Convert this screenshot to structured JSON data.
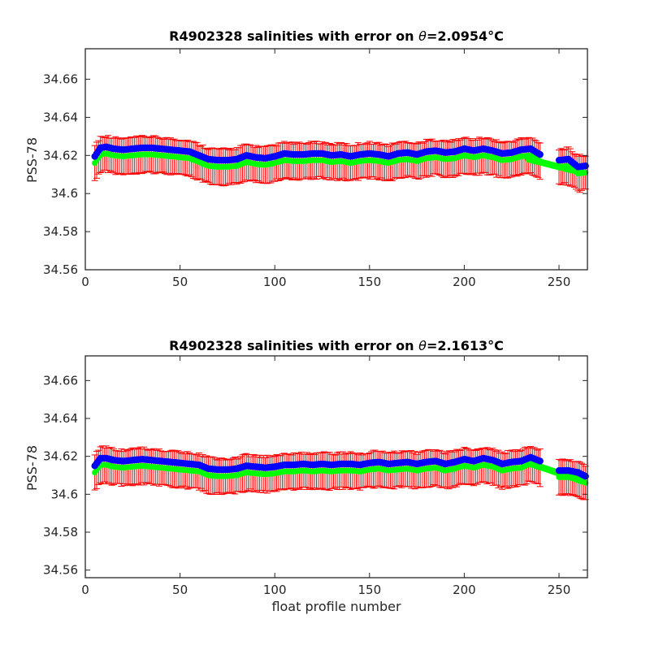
{
  "colors": {
    "measured": "#0000ff",
    "errorbar": "#ff0000",
    "mapped": "#00ff00",
    "axes": "#262626"
  },
  "chart_data": [
    {
      "type": "scatter",
      "title_main": "R4902328 salinities with error on ",
      "title_theta": "θ",
      "title_value": "=2.0954",
      "title_unit": "°C",
      "xlabel": "",
      "ylabel": "PSS-78",
      "xlim": [
        0,
        265
      ],
      "ylim": [
        34.56,
        34.676
      ],
      "xticks": [
        0,
        50,
        100,
        150,
        200,
        250
      ],
      "yticks": [
        34.56,
        34.58,
        34.6,
        34.62,
        34.64,
        34.66
      ],
      "ytick_labels": [
        "34.56",
        "34.58",
        "34.6",
        "34.62",
        "34.64",
        "34.66"
      ],
      "grid": false,
      "gaps": [
        [
          240,
          250
        ]
      ],
      "error_halfwidth": 0.0085,
      "mapped_offset": -0.0035,
      "mapped_tail": [
        [
          234,
          34.618
        ],
        [
          262,
          34.611
        ]
      ],
      "measured_x": [
        5,
        8,
        11,
        15,
        20,
        25,
        30,
        35,
        40,
        45,
        50,
        55,
        60,
        65,
        70,
        75,
        80,
        85,
        90,
        95,
        100,
        105,
        110,
        115,
        120,
        125,
        130,
        135,
        140,
        145,
        150,
        155,
        160,
        165,
        170,
        175,
        180,
        185,
        190,
        195,
        200,
        205,
        210,
        215,
        220,
        225,
        230,
        235,
        240,
        250,
        255,
        260,
        264
      ],
      "measured_y": [
        34.6195,
        34.624,
        34.6245,
        34.6235,
        34.623,
        34.6235,
        34.624,
        34.624,
        34.6235,
        34.623,
        34.6225,
        34.622,
        34.62,
        34.618,
        34.6175,
        34.6175,
        34.618,
        34.62,
        34.619,
        34.6185,
        34.6195,
        34.621,
        34.6205,
        34.6205,
        34.621,
        34.621,
        34.62,
        34.6205,
        34.6195,
        34.6205,
        34.621,
        34.6205,
        34.6195,
        34.621,
        34.6215,
        34.6205,
        34.622,
        34.6225,
        34.6215,
        34.622,
        34.6235,
        34.6225,
        34.6235,
        34.6225,
        34.621,
        34.6215,
        34.623,
        34.6235,
        34.6205,
        34.6175,
        34.618,
        34.614,
        34.6145
      ]
    },
    {
      "type": "scatter",
      "title_main": "R4902328 salinities with error on ",
      "title_theta": "θ",
      "title_value": "=2.1613",
      "title_unit": "°C",
      "xlabel": "float profile number",
      "ylabel": "PSS-78",
      "xlim": [
        0,
        265
      ],
      "ylim": [
        34.556,
        34.673
      ],
      "xticks": [
        0,
        50,
        100,
        150,
        200,
        250
      ],
      "yticks": [
        34.56,
        34.58,
        34.6,
        34.62,
        34.64,
        34.66
      ],
      "ytick_labels": [
        "34.56",
        "34.58",
        "34.6",
        "34.62",
        "34.64",
        "34.66"
      ],
      "grid": false,
      "gaps": [
        [
          240,
          250
        ]
      ],
      "error_halfwidth": 0.0085,
      "mapped_offset": -0.0035,
      "mapped_tail": [
        [
          234,
          34.6165
        ],
        [
          262,
          34.607
        ]
      ],
      "measured_x": [
        5,
        8,
        11,
        15,
        20,
        25,
        30,
        35,
        40,
        45,
        50,
        55,
        60,
        65,
        70,
        75,
        80,
        85,
        90,
        95,
        100,
        105,
        110,
        115,
        120,
        125,
        130,
        135,
        140,
        145,
        150,
        155,
        160,
        165,
        170,
        175,
        180,
        185,
        190,
        195,
        200,
        205,
        210,
        215,
        220,
        225,
        230,
        235,
        240,
        250,
        255,
        260,
        264
      ],
      "measured_y": [
        34.615,
        34.619,
        34.619,
        34.618,
        34.6175,
        34.618,
        34.6185,
        34.618,
        34.6175,
        34.617,
        34.6165,
        34.616,
        34.6155,
        34.6135,
        34.613,
        34.613,
        34.6135,
        34.615,
        34.6145,
        34.614,
        34.6145,
        34.6155,
        34.6155,
        34.616,
        34.6155,
        34.616,
        34.6155,
        34.616,
        34.616,
        34.6155,
        34.6165,
        34.617,
        34.616,
        34.6165,
        34.617,
        34.616,
        34.617,
        34.6175,
        34.616,
        34.617,
        34.6185,
        34.6175,
        34.619,
        34.618,
        34.616,
        34.617,
        34.6175,
        34.6195,
        34.6175,
        34.6125,
        34.6125,
        34.6115,
        34.6095
      ]
    }
  ]
}
